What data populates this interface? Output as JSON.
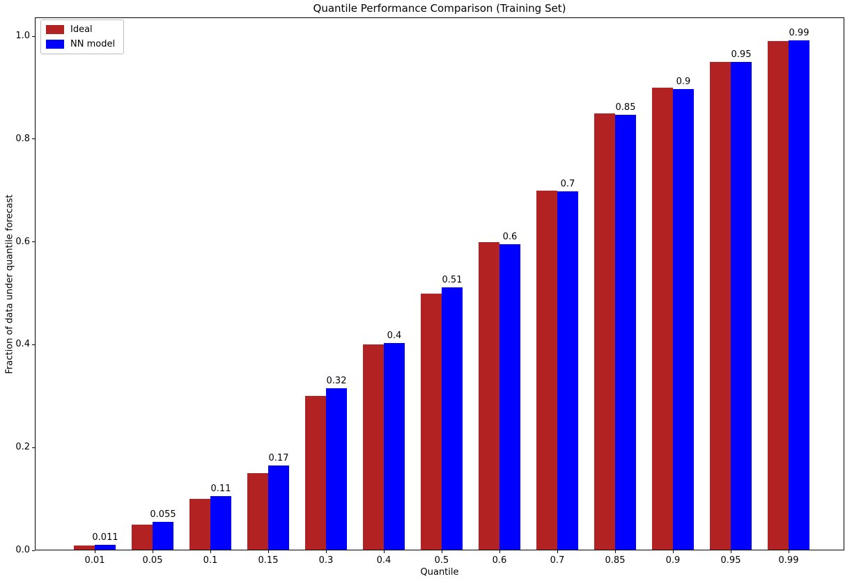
{
  "chart_data": {
    "type": "bar",
    "title": "Quantile Performance Comparison (Training Set)",
    "xlabel": "Quantile",
    "ylabel": "Fraction of data under quantile forecast",
    "categories": [
      "0.01",
      "0.05",
      "0.1",
      "0.15",
      "0.3",
      "0.4",
      "0.5",
      "0.6",
      "0.7",
      "0.85",
      "0.9",
      "0.95",
      "0.99"
    ],
    "series": [
      {
        "name": "Ideal",
        "color": "#B22222",
        "values": [
          0.01,
          0.05,
          0.1,
          0.15,
          0.3,
          0.4,
          0.5,
          0.6,
          0.7,
          0.85,
          0.9,
          0.95,
          0.99
        ]
      },
      {
        "name": "NN model",
        "color": "#0000FF",
        "values": [
          0.011,
          0.055,
          0.106,
          0.165,
          0.315,
          0.403,
          0.512,
          0.596,
          0.698,
          0.847,
          0.897,
          0.95,
          0.992
        ]
      }
    ],
    "bar_labels": [
      "0.011",
      "0.055",
      "0.11",
      "0.17",
      "0.32",
      "0.4",
      "0.51",
      "0.6",
      "0.7",
      "0.85",
      "0.9",
      "0.95",
      "0.99"
    ],
    "yticks": [
      0,
      0.2,
      0.4,
      0.6,
      0.8,
      1.0
    ],
    "ytick_labels": [
      "0.0",
      "0.2",
      "0.4",
      "0.6",
      "0.8",
      "1.0"
    ],
    "ylim": [
      0,
      1.0365
    ],
    "legend_position": "upper left",
    "grid": false,
    "axis_color": "#000000",
    "text_color": "#000000"
  }
}
